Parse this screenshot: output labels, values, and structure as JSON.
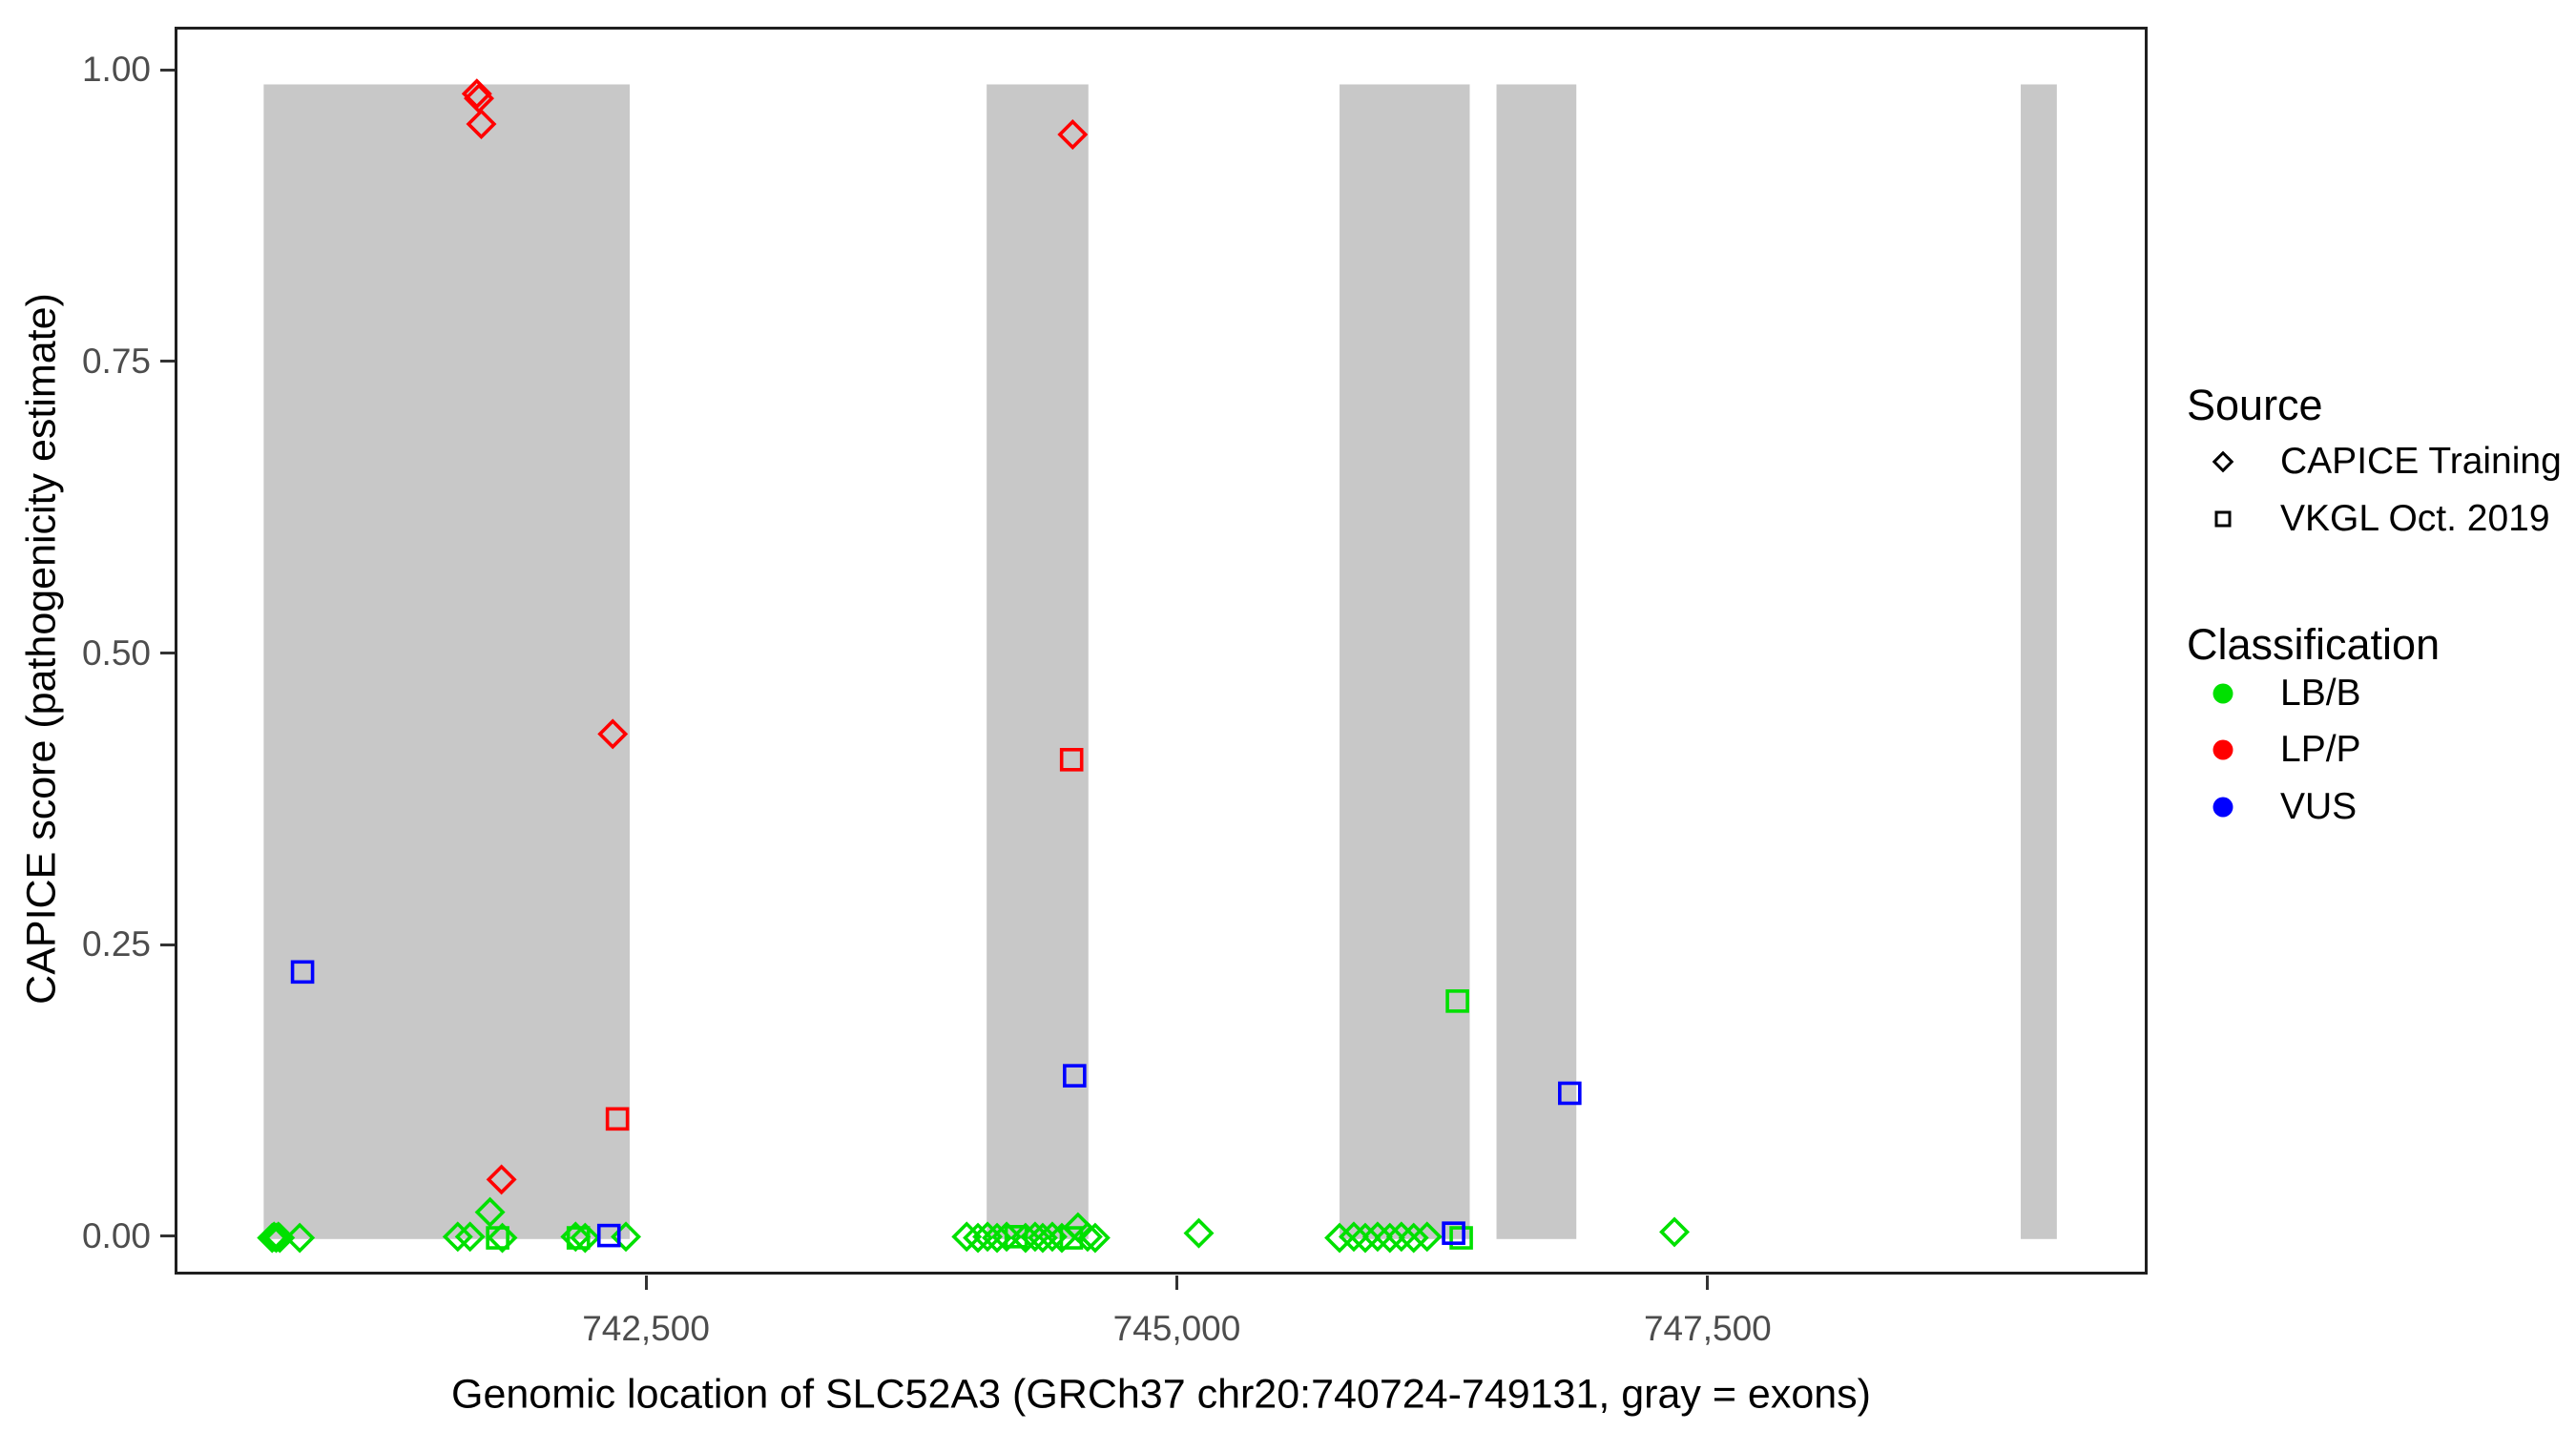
{
  "chart_data": {
    "type": "scatter",
    "title": "",
    "xlabel": "Genomic location of SLC52A3 (GRCh37 chr20:740724-749131, gray = exons)",
    "ylabel": "CAPICE score (pathogenicity estimate)",
    "xlim": [
      740280,
      749545
    ],
    "ylim": [
      -0.028,
      1.037
    ],
    "grid": false,
    "x_ticks": [
      {
        "value": 742500,
        "label": "742,500"
      },
      {
        "value": 745000,
        "label": "745,000"
      },
      {
        "value": 747500,
        "label": "747,500"
      }
    ],
    "y_ticks": [
      {
        "value": 0.0,
        "label": "0.00"
      },
      {
        "value": 0.25,
        "label": "0.25"
      },
      {
        "value": 0.5,
        "label": "0.50"
      },
      {
        "value": 0.75,
        "label": "0.75"
      },
      {
        "value": 1.0,
        "label": "1.00"
      }
    ],
    "exon_color": "#c8c8c8",
    "exon_top": 0.99,
    "exon_bottom": 0.0,
    "exons": [
      [
        740686,
        742410
      ],
      [
        744091,
        744570
      ],
      [
        745753,
        746366
      ],
      [
        746492,
        746868
      ],
      [
        748961,
        749131
      ]
    ],
    "series": [
      {
        "name": "CAPICE Training / LP/P",
        "source": "CAPICE Training",
        "classification": "LP/P",
        "marker": "diamond",
        "color": "#ff0000",
        "points": [
          [
            741690,
            0.982
          ],
          [
            741700,
            0.978
          ],
          [
            741711,
            0.956
          ],
          [
            741806,
            0.051
          ],
          [
            742330,
            0.433
          ],
          [
            744496,
            0.947
          ]
        ]
      },
      {
        "name": "CAPICE Training / LB/B",
        "source": "CAPICE Training",
        "classification": "LB/B",
        "marker": "diamond",
        "color": "#00e000",
        "points": [
          [
            740726,
            0.001
          ],
          [
            740735,
            0.002
          ],
          [
            740745,
            0.001
          ],
          [
            740755,
            0.002
          ],
          [
            740762,
            0.001
          ],
          [
            740856,
            0.001
          ],
          [
            741600,
            0.002
          ],
          [
            741658,
            0.002
          ],
          [
            741752,
            0.023
          ],
          [
            741810,
            0.001
          ],
          [
            742155,
            0.002
          ],
          [
            742200,
            0.001
          ],
          [
            742392,
            0.002
          ],
          [
            743997,
            0.002
          ],
          [
            744050,
            0.001
          ],
          [
            744095,
            0.002
          ],
          [
            744140,
            0.001
          ],
          [
            744185,
            0.002
          ],
          [
            744274,
            0.001
          ],
          [
            744319,
            0.002
          ],
          [
            744355,
            0.001
          ],
          [
            744400,
            0.002
          ],
          [
            744445,
            0.001
          ],
          [
            744521,
            0.01
          ],
          [
            744566,
            0.002
          ],
          [
            744602,
            0.001
          ],
          [
            745090,
            0.005
          ],
          [
            745753,
            0.001
          ],
          [
            745820,
            0.002
          ],
          [
            745874,
            0.001
          ],
          [
            745932,
            0.002
          ],
          [
            745990,
            0.001
          ],
          [
            746044,
            0.002
          ],
          [
            746102,
            0.001
          ],
          [
            746165,
            0.002
          ],
          [
            747330,
            0.006
          ]
        ]
      },
      {
        "name": "VKGL Oct. 2019 / LB/B",
        "source": "VKGL Oct. 2019",
        "classification": "LB/B",
        "marker": "square",
        "color": "#00e000",
        "points": [
          [
            741788,
            0.001
          ],
          [
            742168,
            0.001
          ],
          [
            744230,
            0.002
          ],
          [
            744490,
            0.001
          ],
          [
            746308,
            0.204
          ],
          [
            746326,
            0.001
          ]
        ]
      },
      {
        "name": "VKGL Oct. 2019 / LP/P",
        "source": "VKGL Oct. 2019",
        "classification": "LP/P",
        "marker": "square",
        "color": "#ff0000",
        "points": [
          [
            742352,
            0.103
          ],
          [
            744491,
            0.411
          ]
        ]
      },
      {
        "name": "VKGL Oct. 2019 / VUS",
        "source": "VKGL Oct. 2019",
        "classification": "VUS",
        "marker": "square",
        "color": "#0000ff",
        "points": [
          [
            740869,
            0.229
          ],
          [
            742312,
            0.003
          ],
          [
            744505,
            0.14
          ],
          [
            746290,
            0.005
          ],
          [
            746837,
            0.125
          ]
        ]
      }
    ]
  },
  "legend": {
    "source_title": "Source",
    "source_items": [
      {
        "label": "CAPICE Training",
        "marker": "diamond"
      },
      {
        "label": "VKGL Oct. 2019",
        "marker": "square"
      }
    ],
    "classification_title": "Classification",
    "classification_items": [
      {
        "label": "LB/B",
        "color": "#00e000"
      },
      {
        "label": "LP/P",
        "color": "#ff0000"
      },
      {
        "label": "VUS",
        "color": "#0000ff"
      }
    ]
  },
  "colors": {
    "exon_gray": "#c8c8c8",
    "lb_b_green": "#00e000",
    "lp_p_red": "#ff0000",
    "vus_blue": "#0000ff",
    "tick_text": "#4d4d4d",
    "panel_border": "#1f1f1f"
  }
}
